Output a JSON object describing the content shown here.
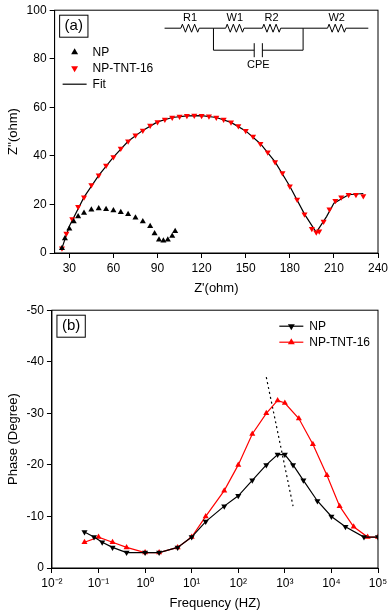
{
  "chart_data": [
    {
      "type": "scatter",
      "panel_label": "(a)",
      "x_label": "Z'(ohm)",
      "y_label": "Z''(ohm)",
      "xlim": [
        20,
        240
      ],
      "xticks": [
        30,
        60,
        90,
        120,
        150,
        180,
        210,
        240
      ],
      "ylim": [
        0,
        100
      ],
      "yticks": [
        0,
        20,
        40,
        60,
        80,
        100
      ],
      "grid": false,
      "legend": "upper left",
      "circuit": {
        "series_start": "R1",
        "branch_top": [
          "W1",
          "R2"
        ],
        "branch_bottom": "CPE",
        "series_end": "W2"
      },
      "series": [
        {
          "name": "NP",
          "color": "#000000",
          "marker": "triangle",
          "line_style": "none",
          "x": [
            25,
            27,
            30,
            33,
            36,
            40,
            45,
            50,
            55,
            60,
            65,
            70,
            75,
            80,
            85,
            88,
            91,
            94,
            97,
            100,
            102
          ],
          "values": [
            2,
            6,
            10,
            13,
            15,
            16.5,
            17.8,
            18.3,
            18,
            17.5,
            16.8,
            16,
            14.5,
            13,
            11,
            8,
            5.5,
            5,
            5.5,
            7,
            9
          ]
        },
        {
          "name": "NP-TNT-16",
          "color": "#ff0000",
          "marker": "triangle_down",
          "line_style": "none",
          "x": [
            25,
            28,
            32,
            36,
            40,
            45,
            50,
            55,
            60,
            65,
            70,
            75,
            80,
            85,
            90,
            95,
            100,
            105,
            110,
            115,
            120,
            125,
            130,
            135,
            140,
            145,
            150,
            155,
            160,
            165,
            170,
            175,
            180,
            185,
            190,
            195,
            198,
            200,
            203,
            207,
            211,
            215,
            220,
            225,
            230
          ],
          "values": [
            2,
            8,
            14,
            19,
            23,
            28,
            32,
            36,
            39.5,
            43,
            46,
            48.5,
            50.5,
            52.5,
            54,
            55,
            55.8,
            56.2,
            56.5,
            56.6,
            56.5,
            56.3,
            55.8,
            55,
            53.8,
            52.3,
            50.3,
            48,
            45,
            41.5,
            37.5,
            33,
            27.5,
            22,
            16,
            10,
            8.5,
            9,
            13,
            18,
            21.5,
            23,
            24,
            24,
            23.5
          ]
        },
        {
          "name": "Fit",
          "color": "#000000",
          "marker": "none",
          "line_style": "solid",
          "x": [
            25,
            30,
            40,
            50,
            60,
            70,
            80,
            90,
            100,
            110,
            120,
            130,
            140,
            150,
            160,
            170,
            180,
            190,
            198,
            205,
            210,
            220,
            230
          ],
          "values": [
            2,
            11,
            23,
            32,
            39.5,
            46,
            50.5,
            54,
            55.8,
            56.5,
            56.6,
            55.8,
            53.8,
            50.3,
            45,
            37.5,
            27.5,
            16,
            8.5,
            15,
            20.5,
            24,
            24.5
          ]
        }
      ]
    },
    {
      "type": "line",
      "panel_label": "(b)",
      "x_label": "Frequency (HZ)",
      "y_label": "Phase (Degree)",
      "log": "x",
      "xlim": [
        0.01,
        100000
      ],
      "xticks": [
        {
          "value": 0.01,
          "label": "10⁻²"
        },
        {
          "value": 0.1,
          "label": "10⁻¹"
        },
        {
          "value": 1,
          "label": "10⁰"
        },
        {
          "value": 10,
          "label": "10¹"
        },
        {
          "value": 100,
          "label": "10²"
        },
        {
          "value": 1000,
          "label": "10³"
        },
        {
          "value": 10000,
          "label": "10⁴"
        },
        {
          "value": 100000,
          "label": "10⁵"
        }
      ],
      "ylim": [
        0,
        -50
      ],
      "yticks": [
        0,
        -10,
        -20,
        -30,
        -40,
        -50
      ],
      "grid": false,
      "legend": "upper right",
      "series": [
        {
          "name": "NP",
          "color": "#000000",
          "marker": "triangle_down",
          "line_style": "solid",
          "x": [
            0.05,
            0.08,
            0.12,
            0.2,
            0.4,
            1,
            2,
            5,
            10,
            20,
            50,
            100,
            200,
            400,
            700,
            1000,
            1500,
            2500,
            5000,
            10000,
            20000,
            50000,
            100000
          ],
          "values": [
            -7,
            -6,
            -5,
            -4,
            -3,
            -3,
            -3,
            -4,
            -6,
            -9,
            -12,
            -14,
            -17,
            -20,
            -22,
            -22,
            -20,
            -17,
            -13,
            -10,
            -8,
            -6,
            -6
          ]
        },
        {
          "name": "NP-TNT-16",
          "color": "#ff0000",
          "marker": "triangle",
          "line_style": "solid",
          "x": [
            0.05,
            0.1,
            0.2,
            0.4,
            1,
            2,
            5,
            10,
            20,
            50,
            100,
            200,
            400,
            700,
            1000,
            2000,
            4000,
            8000,
            15000,
            30000,
            60000,
            100000
          ],
          "values": [
            -5,
            -6,
            -5,
            -4,
            -3,
            -3,
            -4,
            -6,
            -10,
            -15,
            -20,
            -26,
            -30,
            -32.5,
            -32,
            -29,
            -24,
            -18,
            -12,
            -8,
            -6,
            -6
          ]
        }
      ],
      "annotations": [
        {
          "type": "line",
          "line_style": "dotted",
          "color": "#000000",
          "x": [
            400,
            1500
          ],
          "y": [
            -37,
            -12
          ]
        }
      ]
    }
  ]
}
